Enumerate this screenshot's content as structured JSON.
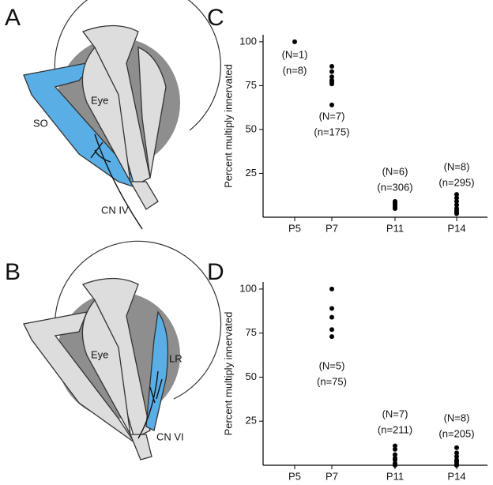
{
  "panels": [
    "A",
    "B",
    "C",
    "D"
  ],
  "illustrations": {
    "a_labels": [
      "Eye",
      "SO",
      "CN IV"
    ],
    "b_labels": [
      "Eye",
      "LR",
      "CN VI"
    ]
  },
  "chart_data": [
    {
      "type": "scatter",
      "y_label": "Percent multiply innervated",
      "categories": [
        "P5",
        "P7",
        "P11",
        "P14"
      ],
      "values": [
        [
          100
        ],
        [
          86,
          83,
          80,
          78,
          77,
          76,
          64
        ],
        [
          9,
          8,
          7,
          6,
          5,
          5
        ],
        [
          13,
          11,
          9,
          7,
          5,
          4,
          3,
          2
        ]
      ],
      "annotations": [
        [
          "(N=1)",
          "(n=8)"
        ],
        [
          "(N=7)",
          "(n=175)"
        ],
        [
          "(N=6)",
          "(n=306)"
        ],
        [
          "(N=8)",
          "(n=295)"
        ]
      ],
      "color": "#000000",
      "ylim": [
        0,
        104
      ],
      "yticks": [
        25,
        50,
        75,
        100
      ]
    },
    {
      "type": "scatter",
      "y_label": "Percent multiply innervated",
      "categories": [
        "P5",
        "P7",
        "P11",
        "P14"
      ],
      "values": [
        [],
        [
          100,
          89,
          84,
          77,
          73
        ],
        [
          11,
          9,
          6,
          4,
          3,
          1,
          0
        ],
        [
          10,
          7,
          5,
          3,
          2,
          1,
          0,
          0
        ]
      ],
      "annotations": [
        null,
        [
          "(N=5)",
          "(n=75)"
        ],
        [
          "(N=7)",
          "(n=211)"
        ],
        [
          "(N=8)",
          "(n=205)"
        ]
      ],
      "color": "#000000",
      "ylim": [
        0,
        104
      ],
      "yticks": [
        25,
        50,
        75,
        100
      ]
    }
  ]
}
